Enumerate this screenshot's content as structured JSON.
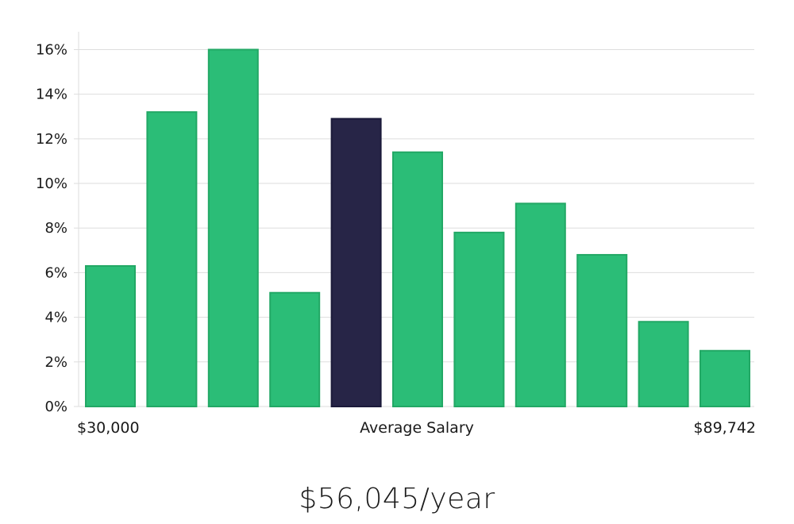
{
  "chart_data": {
    "type": "bar",
    "values": [
      6.3,
      13.2,
      16.0,
      5.1,
      12.9,
      11.4,
      7.8,
      9.1,
      6.8,
      3.8,
      2.5
    ],
    "highlight_index": 4,
    "ylim": [
      0,
      16.8
    ],
    "y_ticks": [
      "0%",
      "2%",
      "4%",
      "6%",
      "8%",
      "10%",
      "12%",
      "14%",
      "16%"
    ],
    "y_tick_values": [
      0,
      2,
      4,
      6,
      8,
      10,
      12,
      14,
      16
    ],
    "grid": true,
    "x_min_label": "$30,000",
    "x_mid_label": "Average Salary",
    "x_max_label": "$89,742",
    "colors": {
      "bar": "#2bbd77",
      "bar_edge": "#22a865",
      "highlight": "#272547",
      "highlight_edge": "#1b1a3a",
      "grid": "#dddddd"
    }
  },
  "salary_text": "$56,045/year"
}
